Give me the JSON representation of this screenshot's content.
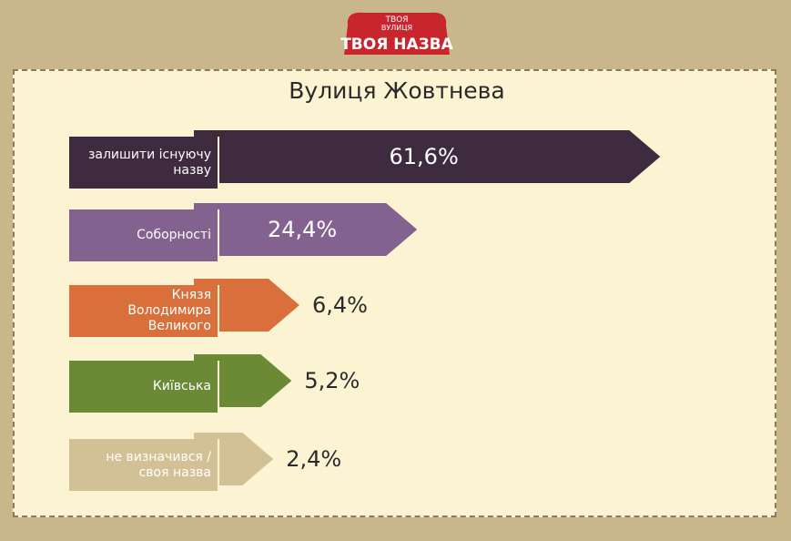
{
  "logo": {
    "top": "ТВОЯ",
    "middle": "ВУЛИЦЯ",
    "main": "ТВОЯ НАЗВА"
  },
  "chart_data": {
    "type": "bar",
    "title": "Вулиця Жовтнева",
    "categories": [
      "залишити існуючу назву",
      "Соборності",
      "Князя Володимира Великого",
      "Київська",
      "не визначився / своя назва"
    ],
    "values": [
      61.6,
      24.4,
      6.4,
      5.2,
      2.4
    ],
    "value_labels": [
      "61,6%",
      "24,4%",
      "6,4%",
      "5,2%",
      "2,4%"
    ],
    "colors": [
      "#3e2b3f",
      "#84628f",
      "#d9703c",
      "#6c8a36",
      "#d3c196"
    ]
  }
}
